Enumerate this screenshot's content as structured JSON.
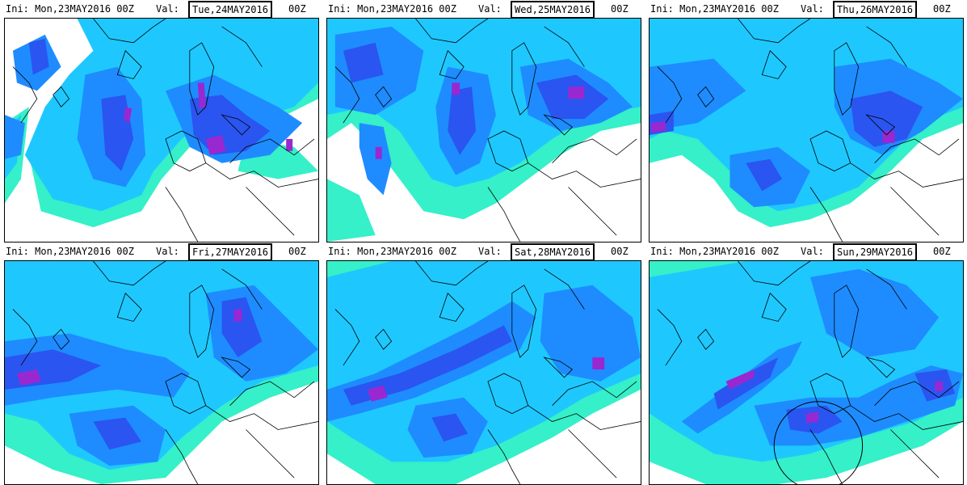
{
  "panels": [
    {
      "init": "Ini: Mon,23MAY2016 00Z",
      "val_label": "Val:",
      "val_date": "Tue,24MAY2016",
      "val_hour": "00Z"
    },
    {
      "init": "Ini: Mon,23MAY2016 00Z",
      "val_label": "Val:",
      "val_date": "Wed,25MAY2016",
      "val_hour": "00Z"
    },
    {
      "init": "Ini: Mon,23MAY2016 00Z",
      "val_label": "Val:",
      "val_date": "Thu,26MAY2016",
      "val_hour": "00Z"
    },
    {
      "init": "Ini: Mon,23MAY2016 00Z",
      "val_label": "Val:",
      "val_date": "Fri,27MAY2016",
      "val_hour": "00Z"
    },
    {
      "init": "Ini: Mon,23MAY2016 00Z",
      "val_label": "Val:",
      "val_date": "Sat,28MAY2016",
      "val_hour": "00Z"
    },
    {
      "init": "Ini: Mon,23MAY2016 00Z",
      "val_label": "Val:",
      "val_date": "Sun,29MAY2016",
      "val_hour": "00Z"
    }
  ],
  "colors": {
    "light": "#35f0c8",
    "cyan": "#1ec8ff",
    "mid": "#1e8cff",
    "blue": "#2a55f0",
    "deep": "#4a28d8",
    "purple": "#9a28d0",
    "magenta": "#e040e0",
    "coast": "#000000"
  }
}
